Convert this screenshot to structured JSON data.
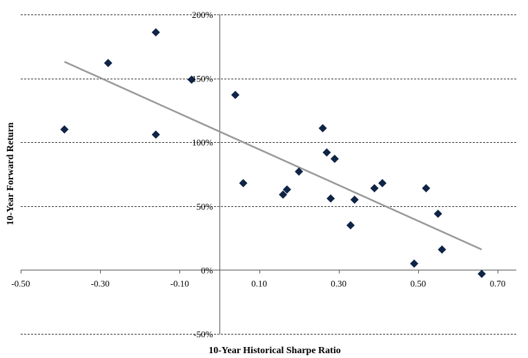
{
  "chart_data": {
    "type": "scatter",
    "title": "",
    "xlabel": "10-Year Historical Sharpe Ratio",
    "ylabel": "10-Year Forward Return",
    "xlim": [
      -0.5,
      0.75
    ],
    "ylim": [
      -0.5,
      2.0
    ],
    "x_ticks": [
      -0.5,
      -0.3,
      -0.1,
      0.1,
      0.3,
      0.5,
      0.7
    ],
    "x_tick_labels": [
      "-0.50",
      "-0.30",
      "-0.10",
      "0.10",
      "0.30",
      "0.50",
      "0.70"
    ],
    "y_ticks": [
      2.0,
      1.5,
      1.0,
      0.5,
      0.0,
      -0.5
    ],
    "y_tick_labels": [
      "200%",
      "150%",
      "100%",
      "50%",
      "0%",
      "-50%"
    ],
    "grid": "horizontal-dashed",
    "legend": "none",
    "series": [
      {
        "marker": "diamond",
        "color": "#0f2446",
        "points": [
          {
            "x": -0.39,
            "y": 1.1
          },
          {
            "x": -0.28,
            "y": 1.62
          },
          {
            "x": -0.16,
            "y": 1.86
          },
          {
            "x": -0.16,
            "y": 1.06
          },
          {
            "x": -0.07,
            "y": 1.49
          },
          {
            "x": 0.04,
            "y": 1.37
          },
          {
            "x": 0.06,
            "y": 0.68
          },
          {
            "x": 0.16,
            "y": 0.59
          },
          {
            "x": 0.17,
            "y": 0.63
          },
          {
            "x": 0.2,
            "y": 0.77
          },
          {
            "x": 0.26,
            "y": 1.11
          },
          {
            "x": 0.27,
            "y": 0.92
          },
          {
            "x": 0.28,
            "y": 0.56
          },
          {
            "x": 0.29,
            "y": 0.87
          },
          {
            "x": 0.34,
            "y": 0.55
          },
          {
            "x": 0.33,
            "y": 0.35
          },
          {
            "x": 0.39,
            "y": 0.64
          },
          {
            "x": 0.41,
            "y": 0.68
          },
          {
            "x": 0.49,
            "y": 0.05
          },
          {
            "x": 0.52,
            "y": 0.64
          },
          {
            "x": 0.55,
            "y": 0.44
          },
          {
            "x": 0.56,
            "y": 0.16
          },
          {
            "x": 0.66,
            "y": -0.03
          }
        ]
      }
    ],
    "trendline": {
      "color": "#999999",
      "start": {
        "x": -0.39,
        "y": 1.63
      },
      "end": {
        "x": 0.66,
        "y": 0.16
      }
    }
  }
}
